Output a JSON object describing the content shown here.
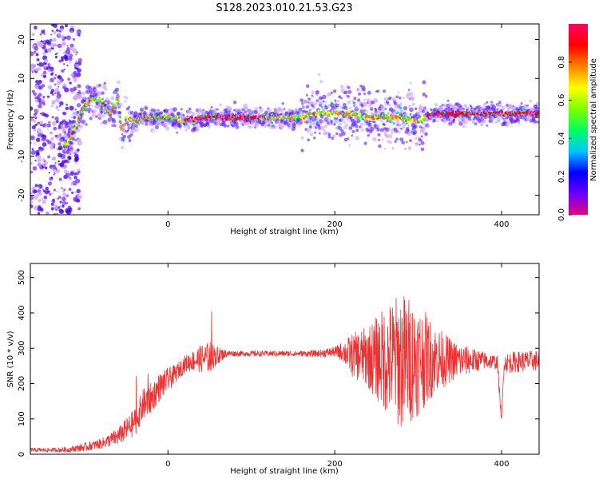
{
  "figure_title": "S128.2023.010.21.53.G23",
  "chart_data": [
    {
      "type": "heatmap",
      "xlabel": "Height of straight line (km)",
      "ylabel": "Frequency (Hz)",
      "xlim": [
        -165,
        445
      ],
      "ylim": [
        -25,
        24
      ],
      "xticks": [
        0,
        200,
        400
      ],
      "yticks": [
        -20,
        -10,
        0,
        10,
        20
      ],
      "grid": false,
      "colorbar": {
        "label": "Normalized spectral amplitude",
        "range": [
          0,
          1
        ],
        "ticks": [
          "0.0",
          "0.2",
          "0.4",
          "0.6",
          "0.8"
        ],
        "colormap": [
          "#e6007a",
          "#6a00ff",
          "#0000ff",
          "#00c8ff",
          "#00ff60",
          "#80ff00",
          "#ffff00",
          "#ff8000",
          "#ff0000",
          "#ff0060"
        ]
      },
      "ridge": {
        "x": [
          -120,
          -110,
          -100,
          -90,
          -80,
          -70,
          -60,
          -55,
          -50,
          -40,
          -30,
          -20,
          0,
          20,
          40,
          60,
          80,
          100,
          120,
          140,
          160,
          180,
          200,
          220,
          240,
          260,
          280,
          300,
          310,
          320,
          340,
          360,
          380,
          400,
          420,
          445
        ],
        "y": [
          -7,
          -2,
          3,
          5,
          4,
          1,
          5,
          -4,
          0,
          -1,
          0,
          0,
          0,
          -1,
          0,
          0,
          0,
          0,
          0,
          0,
          0,
          1,
          1,
          1,
          0,
          0,
          0,
          -1,
          0,
          1,
          1,
          1,
          1,
          1,
          1,
          1
        ]
      }
    },
    {
      "type": "line",
      "xlabel": "Height of straight line (km)",
      "ylabel": "SNR (10 * v/v)",
      "xlim": [
        -165,
        445
      ],
      "ylim": [
        0,
        540
      ],
      "xticks": [
        0,
        200,
        400
      ],
      "yticks": [
        0,
        100,
        200,
        300,
        400,
        500
      ],
      "grid": false,
      "color": "#f03030",
      "series": [
        {
          "x": [
            -165,
            -140,
            -120,
            -100,
            -80,
            -60,
            -40,
            -30,
            -20,
            -10,
            0,
            10,
            20,
            30,
            40,
            50,
            60,
            70,
            80,
            100,
            120,
            140,
            160,
            180,
            200,
            210,
            220,
            240,
            260,
            280,
            300,
            320,
            340,
            360,
            380,
            395,
            400,
            403,
            410,
            420,
            445
          ],
          "y": [
            12,
            12,
            13,
            20,
            30,
            50,
            90,
            140,
            160,
            190,
            210,
            230,
            255,
            265,
            270,
            275,
            280,
            285,
            285,
            285,
            285,
            285,
            285,
            285,
            290,
            290,
            280,
            275,
            270,
            265,
            270,
            270,
            265,
            265,
            265,
            260,
            90,
            260,
            260,
            262,
            265
          ],
          "spread": [
            6,
            6,
            8,
            12,
            15,
            25,
            40,
            45,
            45,
            40,
            35,
            25,
            25,
            30,
            40,
            45,
            25,
            10,
            8,
            8,
            8,
            8,
            8,
            10,
            15,
            30,
            60,
            90,
            150,
            200,
            160,
            100,
            60,
            40,
            25,
            20,
            10,
            25,
            30,
            30,
            30
          ]
        }
      ]
    }
  ]
}
